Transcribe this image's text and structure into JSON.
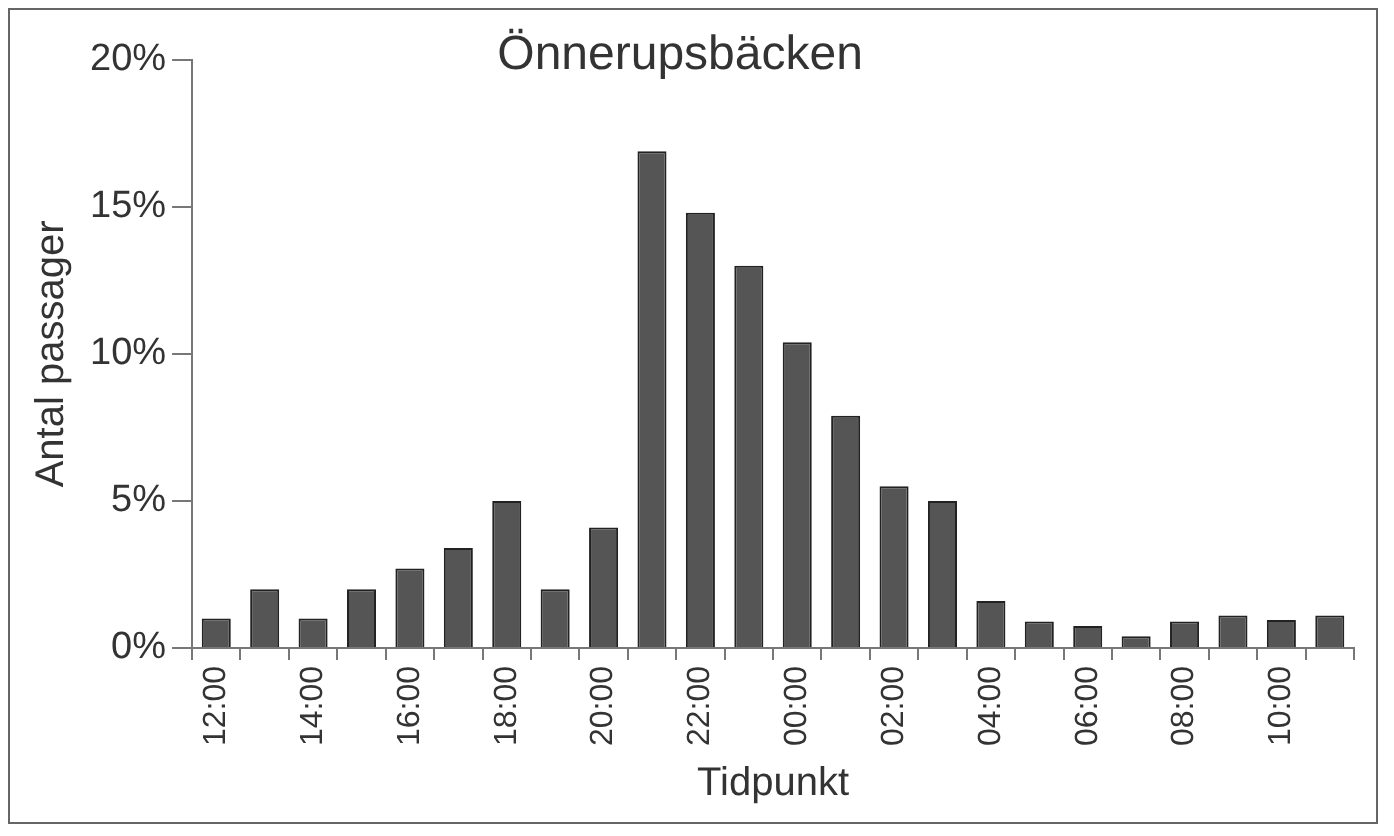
{
  "chart_data": {
    "type": "bar",
    "title": "Önnerupsbäcken",
    "xlabel": "Tidpunkt",
    "ylabel": "Antal passager",
    "categories": [
      "12:00",
      null,
      "14:00",
      null,
      "16:00",
      null,
      "18:00",
      null,
      "20:00",
      null,
      "22:00",
      null,
      "00:00",
      null,
      "02:00",
      null,
      "04:00",
      null,
      "06:00",
      null,
      "08:00",
      null,
      "10:00",
      null
    ],
    "values": [
      1.0,
      2.0,
      1.0,
      2.0,
      2.7,
      3.4,
      5.0,
      2.0,
      4.1,
      16.9,
      14.8,
      13.0,
      10.4,
      7.9,
      5.5,
      5.0,
      1.6,
      0.9,
      0.75,
      0.4,
      0.9,
      1.1,
      0.95,
      1.1
    ],
    "color": "#555555",
    "ylim": [
      0,
      20
    ],
    "yticks": [
      {
        "value": 0,
        "label": "0%"
      },
      {
        "value": 5,
        "label": "5%"
      },
      {
        "value": 10,
        "label": "10%"
      },
      {
        "value": 15,
        "label": "15%"
      },
      {
        "value": 20,
        "label": "20%"
      }
    ],
    "grid": false,
    "legend": false
  }
}
